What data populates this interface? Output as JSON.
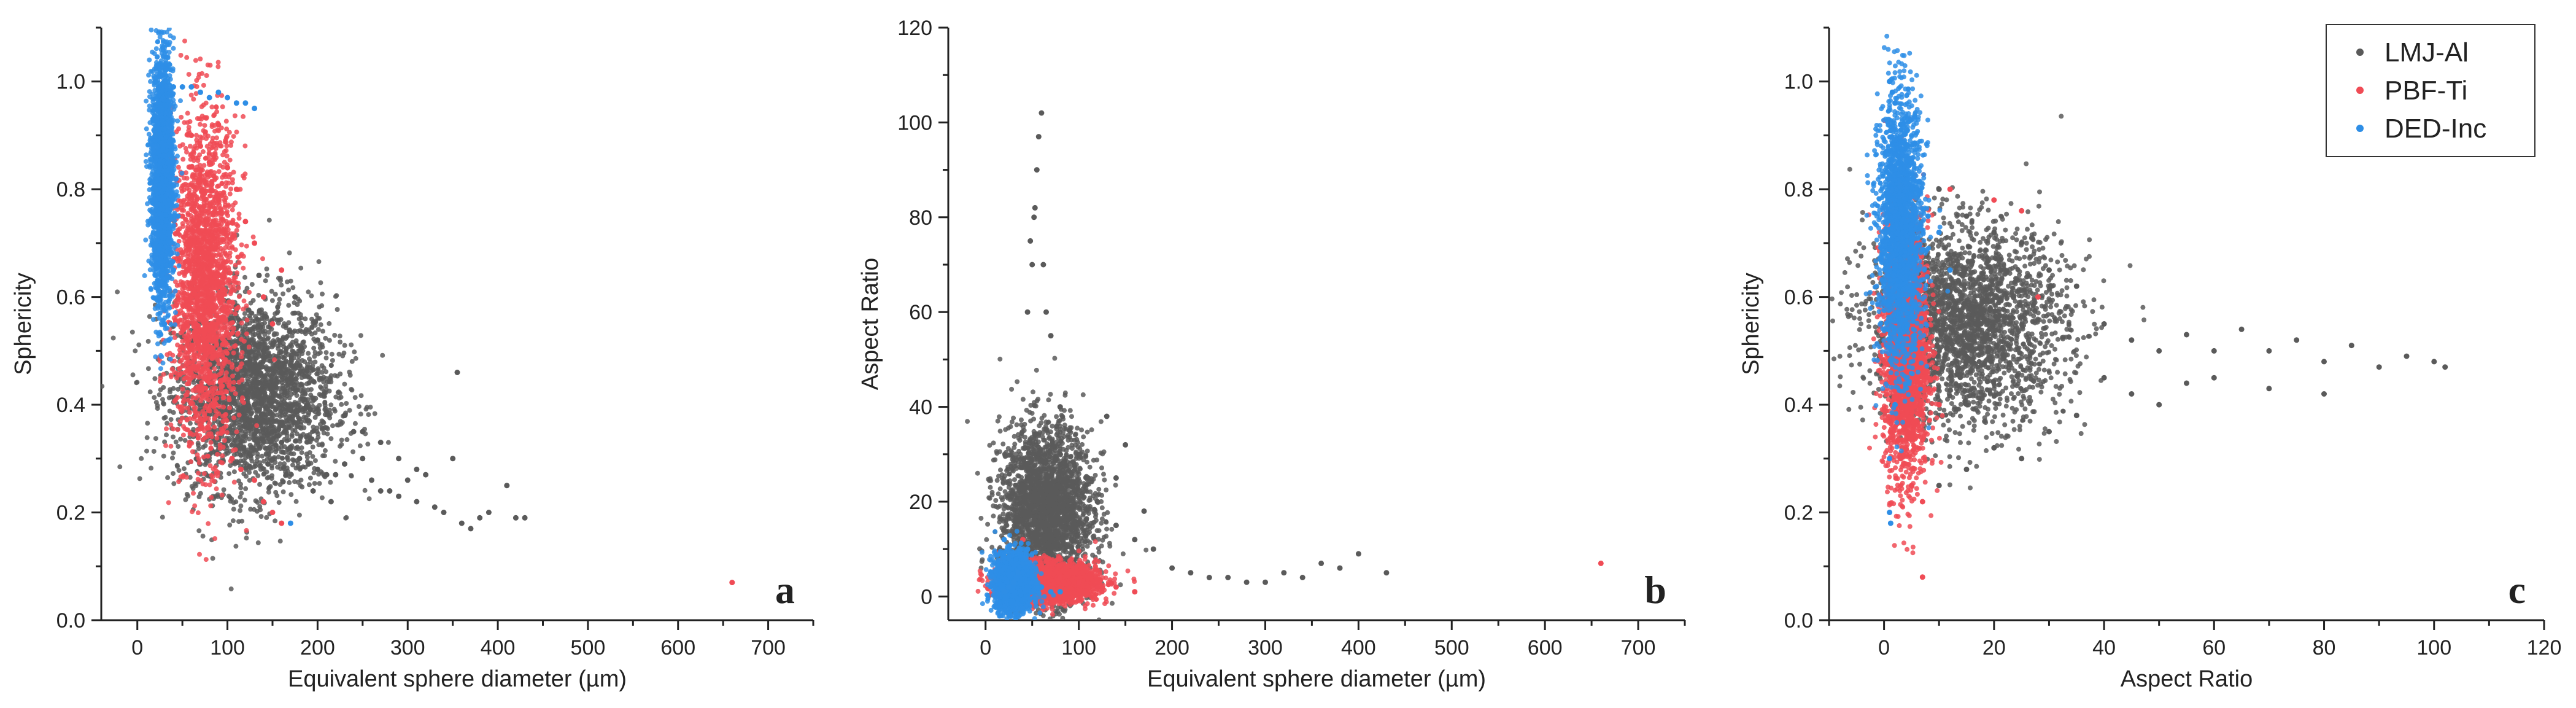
{
  "colors": {
    "LMJ-Al": "#5a5a5a",
    "PBF-Ti": "#f04b55",
    "DED-Inc": "#2e8ee6"
  },
  "legend": {
    "placement": "top-right of panel c",
    "entries": [
      "LMJ-Al",
      "PBF-Ti",
      "DED-Inc"
    ]
  },
  "chart_data": [
    {
      "type": "scatter",
      "panel_label": "a",
      "xlabel": "Equivalent sphere diameter (µm)",
      "ylabel": "Sphericity",
      "xlim": [
        -40,
        750
      ],
      "ylim": [
        0,
        1.1
      ],
      "xticks": [
        0,
        100,
        200,
        300,
        400,
        500,
        600,
        700
      ],
      "yticks": [
        0.0,
        0.2,
        0.4,
        0.6,
        0.8,
        1.0
      ],
      "ytick_decimals": 1,
      "series": [
        {
          "name": "LMJ-Al",
          "points": [
            [
              60,
              0.62
            ],
            [
              80,
              0.55
            ],
            [
              100,
              0.5
            ],
            [
              110,
              0.45
            ],
            [
              120,
              0.42
            ],
            [
              130,
              0.4
            ],
            [
              140,
              0.37
            ],
            [
              150,
              0.35
            ],
            [
              160,
              0.33
            ],
            [
              170,
              0.32
            ],
            [
              180,
              0.3
            ],
            [
              190,
              0.29
            ],
            [
              200,
              0.28
            ],
            [
              210,
              0.27
            ],
            [
              220,
              0.27
            ],
            [
              230,
              0.29
            ],
            [
              240,
              0.35
            ],
            [
              250,
              0.3
            ],
            [
              260,
              0.26
            ],
            [
              270,
              0.24
            ],
            [
              280,
              0.24
            ],
            [
              290,
              0.23
            ],
            [
              300,
              0.26
            ],
            [
              310,
              0.22
            ],
            [
              320,
              0.27
            ],
            [
              330,
              0.21
            ],
            [
              340,
              0.2
            ],
            [
              350,
              0.3
            ],
            [
              355,
              0.46
            ],
            [
              360,
              0.18
            ],
            [
              370,
              0.17
            ],
            [
              380,
              0.19
            ],
            [
              390,
              0.2
            ],
            [
              410,
              0.25
            ],
            [
              420,
              0.19
            ],
            [
              430,
              0.19
            ],
            [
              200,
              0.52
            ],
            [
              175,
              0.6
            ],
            [
              140,
              0.5
            ],
            [
              125,
              0.48
            ],
            [
              115,
              0.38
            ],
            [
              95,
              0.36
            ],
            [
              90,
              0.42
            ],
            [
              85,
              0.48
            ],
            [
              105,
              0.56
            ],
            [
              135,
              0.64
            ],
            [
              160,
              0.46
            ],
            [
              185,
              0.41
            ],
            [
              230,
              0.38
            ],
            [
              250,
              0.35
            ],
            [
              270,
              0.33
            ],
            [
              290,
              0.3
            ],
            [
              310,
              0.28
            ],
            [
              60,
              0.48
            ],
            [
              70,
              0.44
            ],
            [
              145,
              0.29
            ],
            [
              165,
              0.27
            ],
            [
              195,
              0.24
            ],
            [
              215,
              0.22
            ]
          ],
          "center": [
            130,
            0.42
          ],
          "spread": [
            45,
            0.09
          ]
        },
        {
          "name": "PBF-Ti",
          "points": [
            [
              60,
              0.9
            ],
            [
              70,
              0.88
            ],
            [
              80,
              0.85
            ],
            [
              90,
              0.92
            ],
            [
              100,
              0.84
            ],
            [
              110,
              0.8
            ],
            [
              120,
              0.74
            ],
            [
              130,
              0.7
            ],
            [
              140,
              0.6
            ],
            [
              150,
              0.55
            ],
            [
              160,
              0.65
            ],
            [
              50,
              0.75
            ],
            [
              55,
              0.65
            ],
            [
              65,
              0.55
            ],
            [
              75,
              0.45
            ],
            [
              85,
              0.4
            ],
            [
              95,
              0.35
            ],
            [
              105,
              0.3
            ],
            [
              115,
              0.28
            ],
            [
              130,
              0.26
            ],
            [
              140,
              0.22
            ],
            [
              150,
              0.2
            ],
            [
              160,
              0.18
            ],
            [
              660,
              0.07
            ]
          ],
          "center": [
            75,
            0.62
          ],
          "spread": [
            18,
            0.15
          ]
        },
        {
          "name": "DED-Inc",
          "points": [
            [
              20,
              1.0
            ],
            [
              30,
              1.0
            ],
            [
              40,
              0.99
            ],
            [
              50,
              0.99
            ],
            [
              60,
              0.99
            ],
            [
              70,
              0.98
            ],
            [
              80,
              0.97
            ],
            [
              90,
              0.98
            ],
            [
              100,
              0.97
            ],
            [
              110,
              0.96
            ],
            [
              120,
              0.96
            ],
            [
              130,
              0.95
            ],
            [
              20,
              0.9
            ],
            [
              20,
              0.8
            ],
            [
              20,
              0.7
            ],
            [
              25,
              0.6
            ],
            [
              30,
              0.55
            ],
            [
              35,
              0.52
            ],
            [
              40,
              0.65
            ],
            [
              45,
              0.75
            ],
            [
              170,
              0.18
            ]
          ],
          "center": [
            28,
            0.82
          ],
          "spread": [
            6,
            0.12
          ]
        }
      ]
    },
    {
      "type": "scatter",
      "panel_label": "b",
      "xlabel": "Equivalent sphere diameter (µm)",
      "ylabel": "Aspect Ratio",
      "xlim": [
        -40,
        750
      ],
      "ylim": [
        -5,
        120
      ],
      "xticks": [
        0,
        100,
        200,
        300,
        400,
        500,
        600,
        700
      ],
      "yticks": [
        0,
        20,
        40,
        60,
        80,
        100,
        120
      ],
      "ytick_decimals": 0,
      "series": [
        {
          "name": "LMJ-Al",
          "points": [
            [
              45,
              60
            ],
            [
              50,
              70
            ],
            [
              52,
              80
            ],
            [
              55,
              90
            ],
            [
              57,
              97
            ],
            [
              60,
              102
            ],
            [
              48,
              75
            ],
            [
              53,
              82
            ],
            [
              62,
              70
            ],
            [
              65,
              60
            ],
            [
              70,
              55
            ],
            [
              80,
              40
            ],
            [
              90,
              35
            ],
            [
              100,
              30
            ],
            [
              110,
              25
            ],
            [
              120,
              20
            ],
            [
              140,
              15
            ],
            [
              160,
              12
            ],
            [
              180,
              10
            ],
            [
              200,
              6
            ],
            [
              220,
              5
            ],
            [
              240,
              4
            ],
            [
              260,
              4
            ],
            [
              280,
              3
            ],
            [
              300,
              3
            ],
            [
              320,
              5
            ],
            [
              340,
              4
            ],
            [
              360,
              7
            ],
            [
              380,
              6
            ],
            [
              400,
              9
            ],
            [
              430,
              5
            ],
            [
              150,
              32
            ],
            [
              130,
              38
            ],
            [
              140,
              25
            ],
            [
              170,
              18
            ]
          ],
          "center": [
            65,
            18
          ],
          "spread": [
            25,
            9
          ]
        },
        {
          "name": "PBF-Ti",
          "points": [
            [
              60,
              5
            ],
            [
              80,
              4
            ],
            [
              100,
              3
            ],
            [
              120,
              2
            ],
            [
              140,
              2
            ],
            [
              160,
              1
            ],
            [
              40,
              12
            ],
            [
              50,
              8
            ],
            [
              660,
              7
            ]
          ],
          "center": [
            70,
            3
          ],
          "spread": [
            25,
            2
          ]
        },
        {
          "name": "DED-Inc",
          "points": [
            [
              20,
              1
            ],
            [
              25,
              2
            ],
            [
              30,
              3
            ],
            [
              35,
              5
            ],
            [
              40,
              7
            ],
            [
              45,
              10
            ],
            [
              20,
              12
            ],
            [
              25,
              8
            ],
            [
              50,
              4
            ],
            [
              60,
              2
            ],
            [
              70,
              1
            ],
            [
              80,
              1
            ]
          ],
          "center": [
            30,
            3
          ],
          "spread": [
            10,
            3
          ]
        }
      ]
    },
    {
      "type": "scatter",
      "panel_label": "c",
      "xlabel": "Aspect Ratio",
      "ylabel": "Sphericity",
      "xlim": [
        -10,
        120
      ],
      "ylim": [
        0,
        1.1
      ],
      "xticks": [
        0,
        20,
        40,
        60,
        80,
        100,
        120
      ],
      "yticks": [
        0.0,
        0.2,
        0.4,
        0.6,
        0.8,
        1.0
      ],
      "ytick_decimals": 1,
      "series": [
        {
          "name": "LMJ-Al",
          "points": [
            [
              40,
              0.55
            ],
            [
              45,
              0.52
            ],
            [
              50,
              0.5
            ],
            [
              55,
              0.53
            ],
            [
              60,
              0.5
            ],
            [
              65,
              0.54
            ],
            [
              70,
              0.5
            ],
            [
              75,
              0.52
            ],
            [
              80,
              0.48
            ],
            [
              85,
              0.51
            ],
            [
              90,
              0.47
            ],
            [
              95,
              0.49
            ],
            [
              100,
              0.48
            ],
            [
              102,
              0.47
            ],
            [
              40,
              0.45
            ],
            [
              45,
              0.42
            ],
            [
              50,
              0.4
            ],
            [
              55,
              0.44
            ],
            [
              60,
              0.45
            ],
            [
              70,
              0.43
            ],
            [
              80,
              0.42
            ],
            [
              30,
              0.35
            ],
            [
              35,
              0.38
            ],
            [
              25,
              0.3
            ],
            [
              20,
              0.32
            ],
            [
              15,
              0.28
            ],
            [
              10,
              0.25
            ],
            [
              35,
              0.62
            ],
            [
              30,
              0.65
            ],
            [
              25,
              0.7
            ],
            [
              20,
              0.72
            ],
            [
              15,
              0.75
            ],
            [
              10,
              0.8
            ]
          ],
          "center": [
            15,
            0.55
          ],
          "spread": [
            9,
            0.09
          ]
        },
        {
          "name": "PBF-Ti",
          "points": [
            [
              2,
              0.7
            ],
            [
              4,
              0.6
            ],
            [
              6,
              0.5
            ],
            [
              8,
              0.45
            ],
            [
              10,
              0.4
            ],
            [
              3,
              0.3
            ],
            [
              5,
              0.25
            ],
            [
              7,
              0.22
            ],
            [
              12,
              0.8
            ],
            [
              20,
              0.78
            ],
            [
              25,
              0.76
            ],
            [
              28,
              0.6
            ],
            [
              7,
              0.08
            ]
          ],
          "center": [
            4,
            0.5
          ],
          "spread": [
            2,
            0.12
          ]
        },
        {
          "name": "DED-Inc",
          "points": [
            [
              1,
              1.0
            ],
            [
              1.5,
              0.98
            ],
            [
              2,
              0.96
            ],
            [
              3,
              0.92
            ],
            [
              4,
              0.88
            ],
            [
              5,
              0.85
            ],
            [
              6,
              0.8
            ],
            [
              8,
              0.75
            ],
            [
              10,
              0.72
            ],
            [
              1,
              0.2
            ],
            [
              1,
              0.3
            ],
            [
              2,
              0.4
            ],
            [
              1.2,
              0.18
            ],
            [
              12,
              0.65
            ]
          ],
          "center": [
            3,
            0.72
          ],
          "spread": [
            2,
            0.12
          ]
        }
      ]
    }
  ]
}
